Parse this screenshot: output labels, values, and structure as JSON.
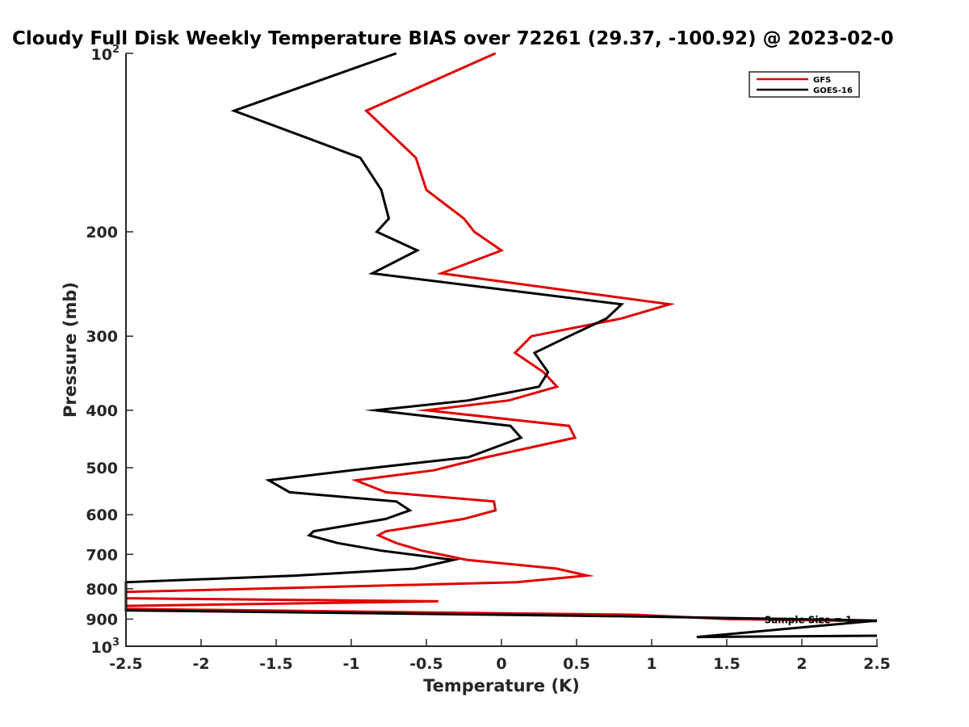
{
  "chart_data": {
    "type": "line",
    "title": "Cloudy Full Disk Weekly Temperature BIAS over 72261 (29.37, -100.92) @ 2023-02-0",
    "xlabel": "Temperature (K)",
    "ylabel": "Pressure (mb)",
    "xlim": [
      -2.5,
      2.5
    ],
    "ylim": [
      100,
      1000
    ],
    "y_scale": "log",
    "y_reversed": true,
    "grid": false,
    "legend_position": "top-right",
    "x_ticks": [
      {
        "value": -2.5,
        "label": "-2.5"
      },
      {
        "value": -2,
        "label": "-2"
      },
      {
        "value": -1.5,
        "label": "-1.5"
      },
      {
        "value": -1,
        "label": "-1"
      },
      {
        "value": -0.5,
        "label": "-0.5"
      },
      {
        "value": 0,
        "label": "0"
      },
      {
        "value": 0.5,
        "label": "0.5"
      },
      {
        "value": 1,
        "label": "1"
      },
      {
        "value": 1.5,
        "label": "1.5"
      },
      {
        "value": 2,
        "label": "2"
      },
      {
        "value": 2.5,
        "label": "2.5"
      }
    ],
    "y_ticks": [
      {
        "value": 100,
        "base": "10",
        "exp": "2"
      },
      {
        "value": 200,
        "label": "200"
      },
      {
        "value": 300,
        "label": "300"
      },
      {
        "value": 400,
        "label": "400"
      },
      {
        "value": 500,
        "label": "500"
      },
      {
        "value": 600,
        "label": "600"
      },
      {
        "value": 700,
        "label": "700"
      },
      {
        "value": 800,
        "label": "800"
      },
      {
        "value": 900,
        "label": "900"
      },
      {
        "value": 1000,
        "base": "10",
        "exp": "3"
      }
    ],
    "series": [
      {
        "name": "GFS",
        "color": "#e00000",
        "points": [
          [
            -0.04,
            100
          ],
          [
            -0.9,
            125
          ],
          [
            -0.57,
            150
          ],
          [
            -0.5,
            170
          ],
          [
            -0.25,
            190
          ],
          [
            -0.18,
            200
          ],
          [
            0.0,
            215
          ],
          [
            -0.4,
            235
          ],
          [
            1.12,
            265
          ],
          [
            0.8,
            280
          ],
          [
            0.2,
            300
          ],
          [
            0.09,
            320
          ],
          [
            0.28,
            345
          ],
          [
            0.37,
            365
          ],
          [
            0.05,
            385
          ],
          [
            -0.5,
            400
          ],
          [
            0.45,
            425
          ],
          [
            0.49,
            445
          ],
          [
            -0.1,
            480
          ],
          [
            -0.45,
            505
          ],
          [
            -0.97,
            525
          ],
          [
            -0.77,
            550
          ],
          [
            -0.05,
            570
          ],
          [
            -0.04,
            590
          ],
          [
            -0.25,
            610
          ],
          [
            -0.77,
            640
          ],
          [
            -0.82,
            650
          ],
          [
            -0.7,
            670
          ],
          [
            -0.53,
            690
          ],
          [
            -0.23,
            715
          ],
          [
            0.37,
            740
          ],
          [
            0.57,
            760
          ],
          [
            0.1,
            780
          ],
          [
            -2.5,
            810
          ],
          [
            -2.5,
            830
          ],
          [
            -0.42,
            840
          ],
          [
            -2.5,
            855
          ],
          [
            -2.5,
            865
          ],
          [
            0.9,
            885
          ],
          [
            1.5,
            900
          ],
          [
            2.5,
            907
          ]
        ]
      },
      {
        "name": "GOES-16",
        "color": "#000000",
        "points": [
          [
            -0.7,
            100
          ],
          [
            -1.78,
            125
          ],
          [
            -0.94,
            150
          ],
          [
            -0.8,
            170
          ],
          [
            -0.75,
            190
          ],
          [
            -0.83,
            200
          ],
          [
            -0.56,
            215
          ],
          [
            -0.86,
            235
          ],
          [
            0.8,
            265
          ],
          [
            0.7,
            280
          ],
          [
            0.45,
            300
          ],
          [
            0.22,
            320
          ],
          [
            0.31,
            345
          ],
          [
            0.25,
            365
          ],
          [
            -0.22,
            385
          ],
          [
            -0.84,
            400
          ],
          [
            0.06,
            425
          ],
          [
            0.13,
            445
          ],
          [
            -0.22,
            480
          ],
          [
            -1.0,
            505
          ],
          [
            -1.55,
            525
          ],
          [
            -1.41,
            550
          ],
          [
            -0.7,
            570
          ],
          [
            -0.61,
            590
          ],
          [
            -0.77,
            610
          ],
          [
            -1.25,
            640
          ],
          [
            -1.28,
            650
          ],
          [
            -1.09,
            670
          ],
          [
            -0.8,
            690
          ],
          [
            -0.32,
            715
          ],
          [
            -0.58,
            740
          ],
          [
            -1.36,
            760
          ],
          [
            -2.5,
            780
          ],
          [
            -2.5,
            870
          ],
          [
            0.8,
            890
          ],
          [
            2.5,
            905
          ],
          [
            1.3,
            965
          ],
          [
            2.5,
            960
          ]
        ]
      }
    ],
    "annotations": [
      {
        "text": "Sample Size = 1",
        "x": 1.75,
        "y": 900
      }
    ]
  }
}
